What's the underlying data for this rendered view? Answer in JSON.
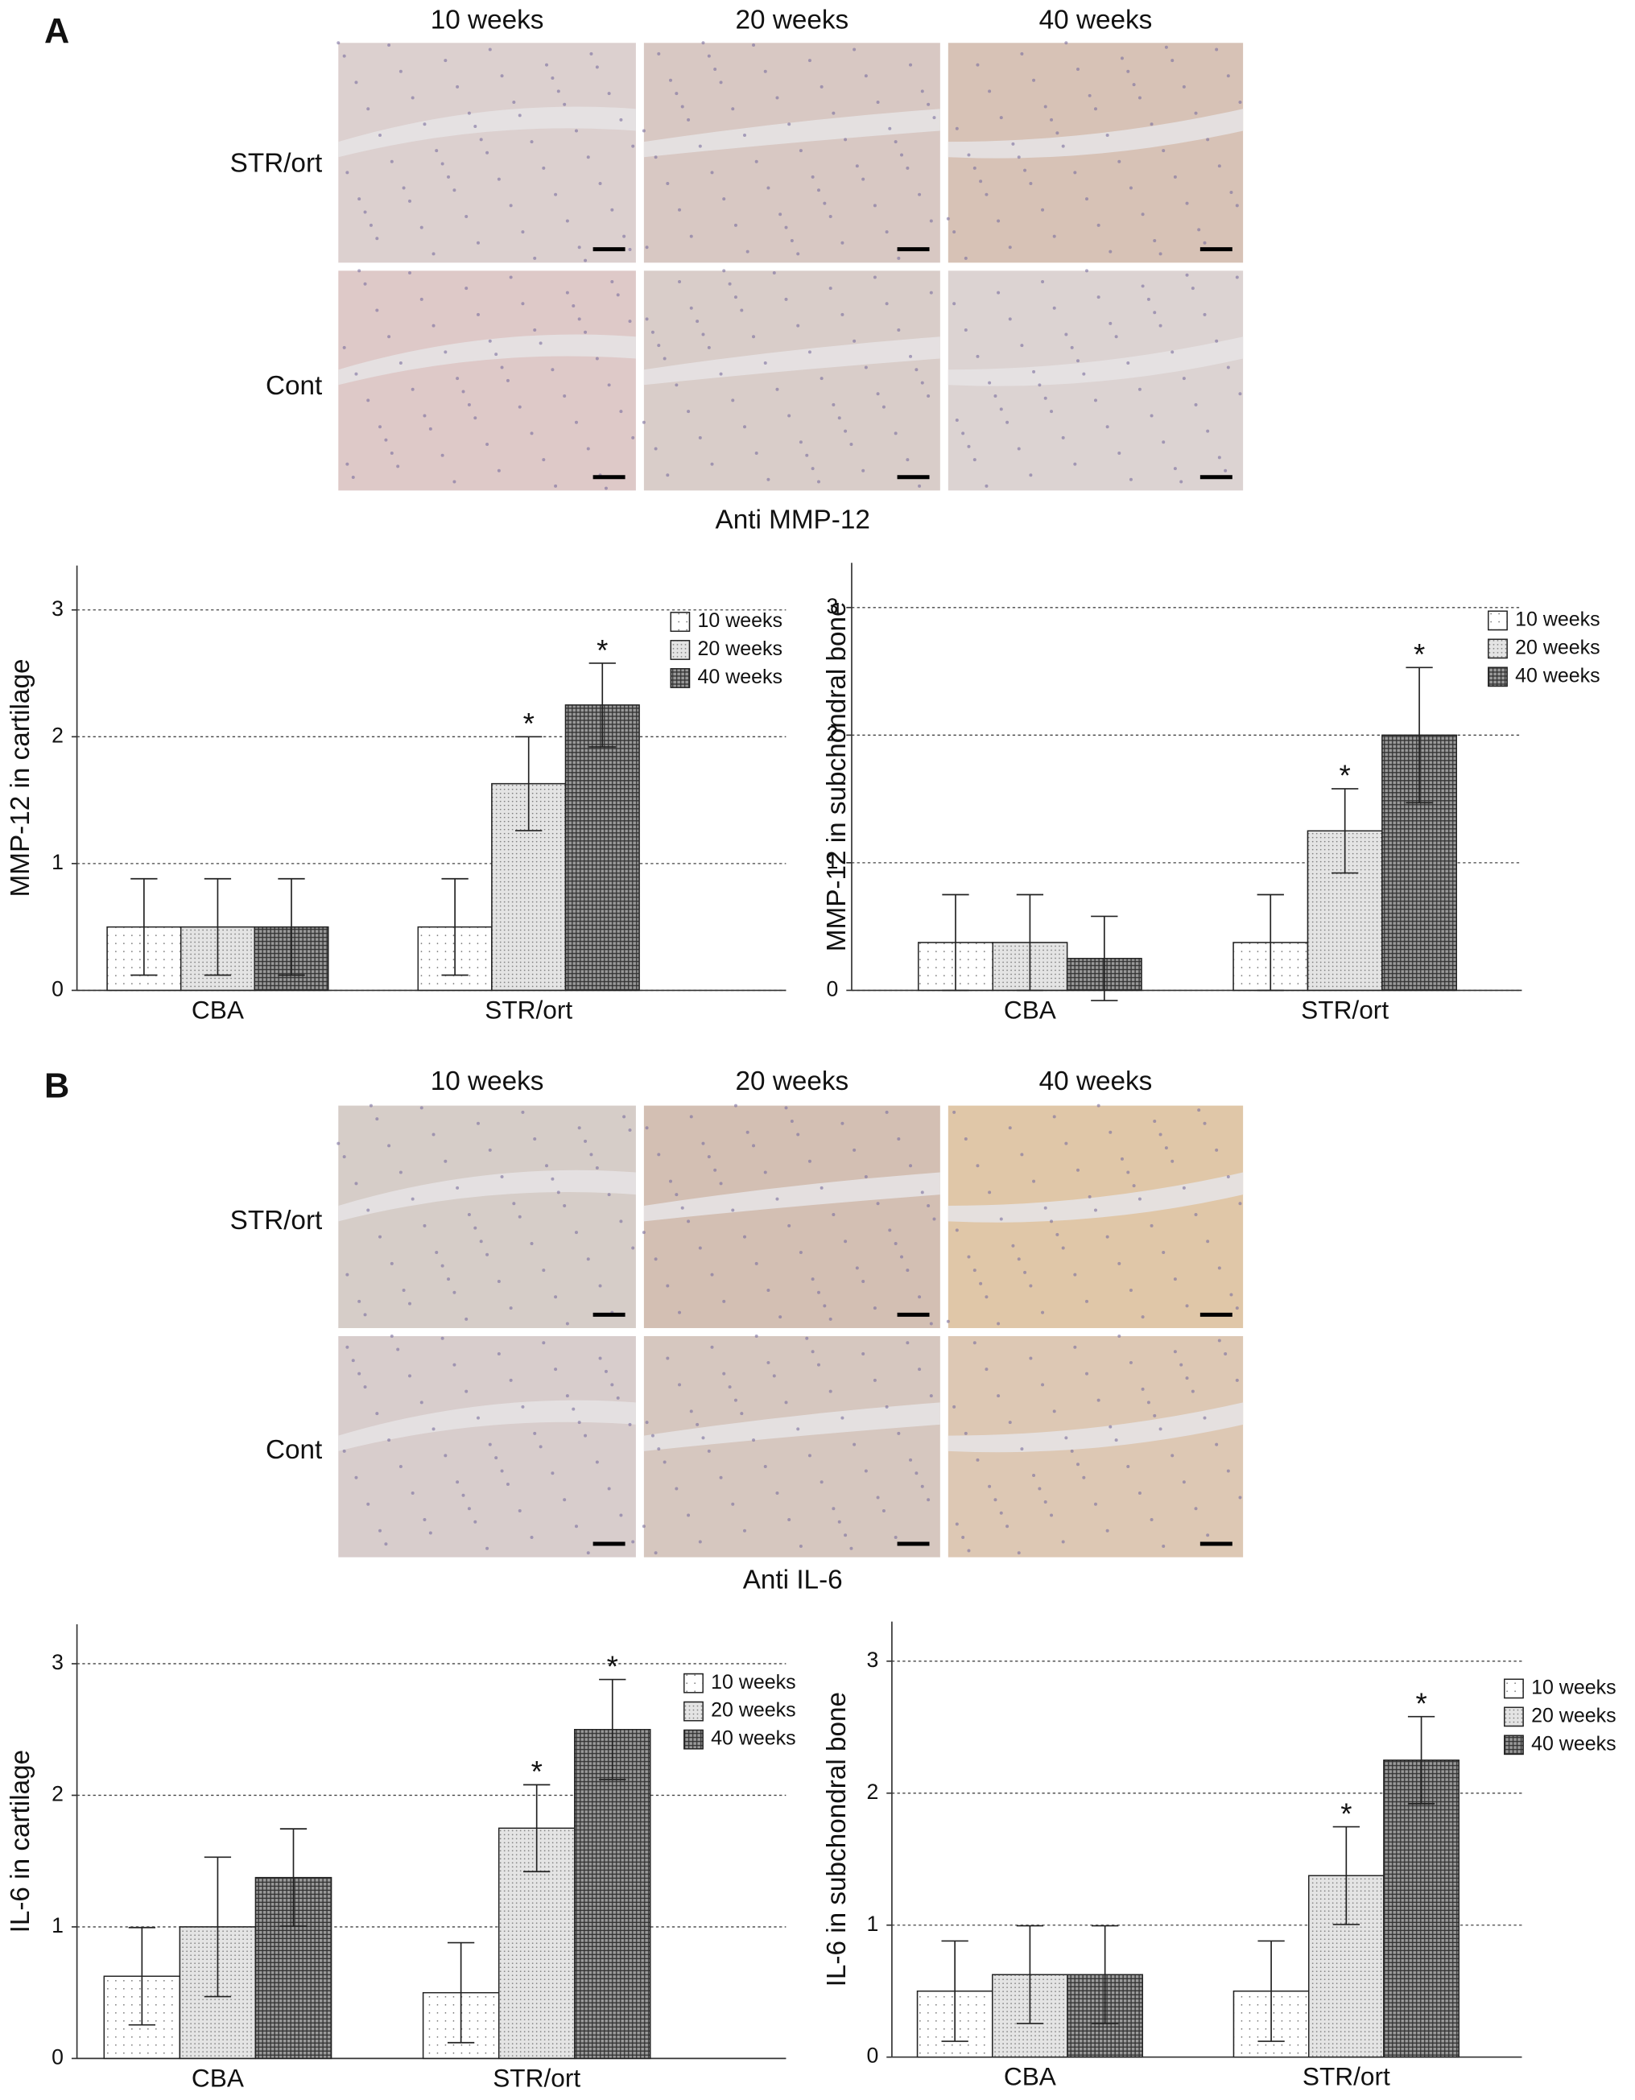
{
  "panels": [
    {
      "label": "A",
      "columns": [
        "10 weeks",
        "20 weeks",
        "40 weeks"
      ],
      "rows": [
        "STR/ort",
        "Cont"
      ],
      "caption": "Anti MMP-12"
    },
    {
      "label": "B",
      "columns": [
        "10 weeks",
        "20 weeks",
        "40 weeks"
      ],
      "rows": [
        "STR/ort",
        "Cont"
      ],
      "caption": "Anti IL-6"
    }
  ],
  "chart_data": [
    {
      "type": "bar",
      "ylabel": "MMP-12 in cartilage",
      "categories": [
        "CBA",
        "STR/ort"
      ],
      "series": [
        {
          "name": "10 weeks",
          "color": "#ffffff",
          "values": [
            0.5,
            0.5
          ],
          "errors": [
            0.38,
            0.38
          ],
          "annotations": [
            null,
            null
          ]
        },
        {
          "name": "20 weeks",
          "color": "#e4e4e4",
          "values": [
            0.5,
            1.63
          ],
          "errors": [
            0.38,
            0.37
          ],
          "annotations": [
            null,
            "*"
          ]
        },
        {
          "name": "40 weeks",
          "color": "#9a9a9a",
          "values": [
            0.5,
            2.25
          ],
          "errors": [
            0.38,
            0.33
          ],
          "annotations": [
            null,
            "*"
          ]
        }
      ],
      "ylim": [
        0,
        3.35
      ],
      "yticks": [
        0,
        1,
        2,
        3
      ],
      "grid": true,
      "legend": "top-right"
    },
    {
      "type": "bar",
      "ylabel": "MMP-12 in subchondral bone",
      "categories": [
        "CBA",
        "STR/ort"
      ],
      "series": [
        {
          "name": "10 weeks",
          "color": "#ffffff",
          "values": [
            0.375,
            0.375
          ],
          "errors": [
            0.375,
            0.375
          ],
          "annotations": [
            null,
            null
          ]
        },
        {
          "name": "20 weeks",
          "color": "#e4e4e4",
          "values": [
            0.375,
            1.25
          ],
          "errors": [
            0.375,
            0.33
          ],
          "annotations": [
            null,
            "*"
          ]
        },
        {
          "name": "40 weeks",
          "color": "#9a9a9a",
          "values": [
            0.25,
            2.0
          ],
          "errors": [
            0.33,
            0.53
          ],
          "annotations": [
            null,
            "*"
          ]
        }
      ],
      "ylim": [
        0,
        3.35
      ],
      "yticks": [
        0,
        1,
        2,
        3
      ],
      "grid": true,
      "legend": "top-right"
    },
    {
      "type": "bar",
      "ylabel": "IL-6 in cartilage",
      "categories": [
        "CBA",
        "STR/ort"
      ],
      "series": [
        {
          "name": "10 weeks",
          "color": "#ffffff",
          "values": [
            0.625,
            0.5
          ],
          "errors": [
            0.37,
            0.38
          ],
          "annotations": [
            null,
            null
          ]
        },
        {
          "name": "20 weeks",
          "color": "#e4e4e4",
          "values": [
            1.0,
            1.75
          ],
          "errors": [
            0.53,
            0.33
          ],
          "annotations": [
            null,
            "*"
          ]
        },
        {
          "name": "40 weeks",
          "color": "#9a9a9a",
          "values": [
            1.375,
            2.5
          ],
          "errors": [
            0.37,
            0.38
          ],
          "annotations": [
            null,
            "*"
          ]
        }
      ],
      "ylim": [
        0,
        3.3
      ],
      "yticks": [
        0,
        1,
        2,
        3
      ],
      "grid": true,
      "legend": "top-right"
    },
    {
      "type": "bar",
      "ylabel": "IL-6 in subchondral bone",
      "categories": [
        "CBA",
        "STR/ort"
      ],
      "series": [
        {
          "name": "10 weeks",
          "color": "#ffffff",
          "values": [
            0.5,
            0.5
          ],
          "errors": [
            0.38,
            0.38
          ],
          "annotations": [
            null,
            null
          ]
        },
        {
          "name": "20 weeks",
          "color": "#e4e4e4",
          "values": [
            0.625,
            1.375
          ],
          "errors": [
            0.37,
            0.37
          ],
          "annotations": [
            null,
            "*"
          ]
        },
        {
          "name": "40 weeks",
          "color": "#9a9a9a",
          "values": [
            0.625,
            2.25
          ],
          "errors": [
            0.37,
            0.33
          ],
          "annotations": [
            null,
            "*"
          ]
        }
      ],
      "ylim": [
        0,
        3.3
      ],
      "yticks": [
        0,
        1,
        2,
        3
      ],
      "grid": true,
      "legend": "top-right"
    }
  ]
}
